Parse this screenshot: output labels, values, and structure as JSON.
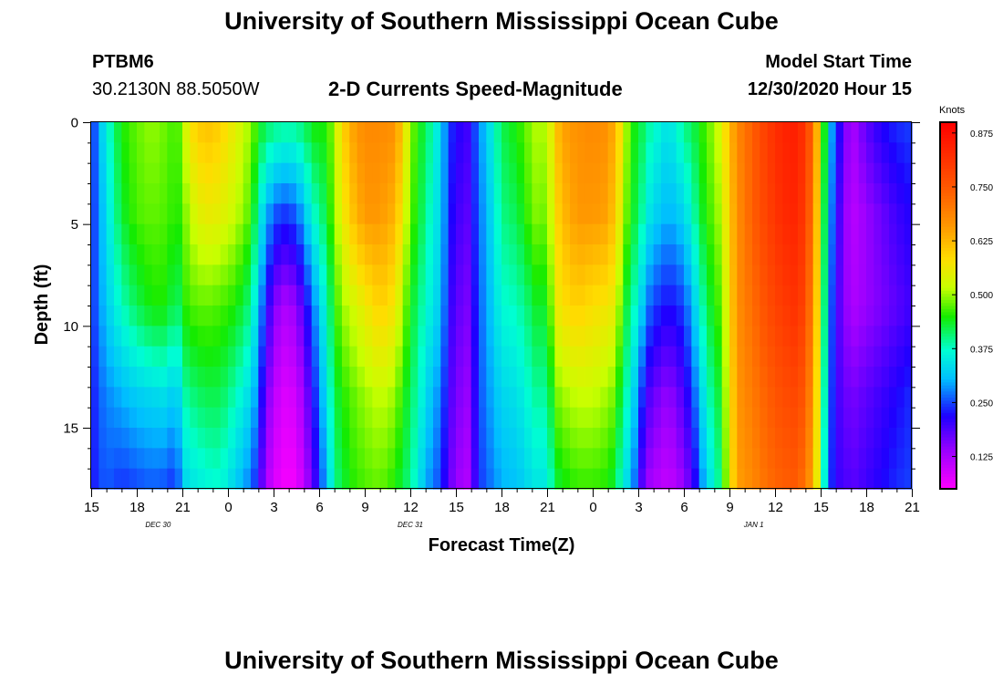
{
  "header": {
    "title": "University of Southern Mississippi Ocean Cube",
    "station": "PTBM6",
    "coords": "30.2130N 88.5050W",
    "chart_title": "2-D Currents Speed-Magnitude",
    "model_label": "Model Start Time",
    "model_time": "12/30/2020 Hour 15"
  },
  "footer": {
    "title": "University of Southern Mississippi Ocean Cube"
  },
  "chart_data": {
    "type": "heatmap",
    "title": "2-D Currents Speed-Magnitude",
    "xlabel": "Forecast Time(Z)",
    "ylabel": "Depth (ft)",
    "x_start": 15,
    "x_end": 69,
    "x_ticks": [
      {
        "value": 15,
        "label": "15"
      },
      {
        "value": 18,
        "label": "18"
      },
      {
        "value": 21,
        "label": "21"
      },
      {
        "value": 24,
        "label": "0"
      },
      {
        "value": 27,
        "label": "3"
      },
      {
        "value": 30,
        "label": "6"
      },
      {
        "value": 33,
        "label": "9"
      },
      {
        "value": 36,
        "label": "12"
      },
      {
        "value": 39,
        "label": "15"
      },
      {
        "value": 42,
        "label": "18"
      },
      {
        "value": 45,
        "label": "21"
      },
      {
        "value": 48,
        "label": "0"
      },
      {
        "value": 51,
        "label": "3"
      },
      {
        "value": 54,
        "label": "6"
      },
      {
        "value": 57,
        "label": "9"
      },
      {
        "value": 60,
        "label": "12"
      },
      {
        "value": 63,
        "label": "15"
      },
      {
        "value": 66,
        "label": "18"
      },
      {
        "value": 69,
        "label": "21"
      }
    ],
    "date_labels": [
      {
        "value": 19.4,
        "label": "DEC 30"
      },
      {
        "value": 36.0,
        "label": "DEC 31"
      },
      {
        "value": 58.6,
        "label": "JAN 1"
      }
    ],
    "ylim": [
      0,
      18
    ],
    "y_ticks": [
      0,
      5,
      10,
      15
    ],
    "colorbar": {
      "unit": "Knots",
      "range": [
        0.05,
        0.9
      ],
      "ticks": [
        0.125,
        0.25,
        0.375,
        0.5,
        0.625,
        0.75,
        0.875
      ],
      "tick_labels": [
        "0.125",
        "0.250",
        "0.375",
        "0.500",
        "0.625",
        "0.750",
        "0.875"
      ]
    },
    "profiles_note": "speed (knots) per column: [time_hours, [value at depth 0, 4.5, 9, 13.5, 18 ft]]",
    "profiles": [
      [
        15.0,
        [
          0.22,
          0.23,
          0.23,
          0.22,
          0.22
        ]
      ],
      [
        15.5,
        [
          0.3,
          0.28,
          0.28,
          0.26,
          0.25
        ]
      ],
      [
        16.0,
        [
          0.36,
          0.34,
          0.32,
          0.28,
          0.26
        ]
      ],
      [
        17.0,
        [
          0.45,
          0.43,
          0.38,
          0.3,
          0.24
        ]
      ],
      [
        18.0,
        [
          0.48,
          0.47,
          0.42,
          0.32,
          0.25
        ]
      ],
      [
        19.0,
        [
          0.5,
          0.48,
          0.45,
          0.33,
          0.26
        ]
      ],
      [
        20.0,
        [
          0.48,
          0.47,
          0.45,
          0.34,
          0.25
        ]
      ],
      [
        20.6,
        [
          0.46,
          0.45,
          0.4,
          0.3,
          0.23
        ]
      ],
      [
        21.0,
        [
          0.5,
          0.47,
          0.45,
          0.38,
          0.32
        ]
      ],
      [
        21.5,
        [
          0.58,
          0.52,
          0.47,
          0.4,
          0.34
        ]
      ],
      [
        22.5,
        [
          0.62,
          0.56,
          0.48,
          0.42,
          0.36
        ]
      ],
      [
        23.5,
        [
          0.6,
          0.55,
          0.47,
          0.42,
          0.37
        ]
      ],
      [
        24.5,
        [
          0.55,
          0.52,
          0.45,
          0.38,
          0.32
        ]
      ],
      [
        25.5,
        [
          0.5,
          0.47,
          0.4,
          0.33,
          0.27
        ]
      ],
      [
        26.0,
        [
          0.45,
          0.38,
          0.32,
          0.27,
          0.22
        ]
      ],
      [
        26.5,
        [
          0.42,
          0.3,
          0.22,
          0.16,
          0.12
        ]
      ],
      [
        27.5,
        [
          0.4,
          0.24,
          0.12,
          0.08,
          0.06
        ]
      ],
      [
        28.5,
        [
          0.4,
          0.26,
          0.14,
          0.09,
          0.06
        ]
      ],
      [
        29.5,
        [
          0.44,
          0.36,
          0.26,
          0.2,
          0.16
        ]
      ],
      [
        30.0,
        [
          0.46,
          0.4,
          0.32,
          0.28,
          0.24
        ]
      ],
      [
        30.5,
        [
          0.44,
          0.42,
          0.38,
          0.34,
          0.3
        ]
      ],
      [
        31.0,
        [
          0.52,
          0.5,
          0.45,
          0.42,
          0.4
        ]
      ],
      [
        31.5,
        [
          0.58,
          0.55,
          0.5,
          0.45,
          0.42
        ]
      ],
      [
        32.0,
        [
          0.64,
          0.6,
          0.52,
          0.47,
          0.45
        ]
      ],
      [
        33.0,
        [
          0.68,
          0.66,
          0.56,
          0.5,
          0.47
        ]
      ],
      [
        34.0,
        [
          0.68,
          0.66,
          0.6,
          0.52,
          0.48
        ]
      ],
      [
        35.0,
        [
          0.67,
          0.63,
          0.57,
          0.5,
          0.45
        ]
      ],
      [
        35.5,
        [
          0.6,
          0.56,
          0.5,
          0.45,
          0.42
        ]
      ],
      [
        36.0,
        [
          0.5,
          0.48,
          0.45,
          0.42,
          0.4
        ]
      ],
      [
        36.5,
        [
          0.45,
          0.44,
          0.4,
          0.38,
          0.35
        ]
      ],
      [
        37.0,
        [
          0.42,
          0.4,
          0.38,
          0.34,
          0.3
        ]
      ],
      [
        37.5,
        [
          0.38,
          0.36,
          0.34,
          0.3,
          0.27
        ]
      ],
      [
        38.0,
        [
          0.33,
          0.33,
          0.32,
          0.28,
          0.25
        ]
      ],
      [
        38.5,
        [
          0.25,
          0.24,
          0.22,
          0.2,
          0.18
        ]
      ],
      [
        39.0,
        [
          0.22,
          0.2,
          0.18,
          0.16,
          0.14
        ]
      ],
      [
        39.8,
        [
          0.2,
          0.18,
          0.16,
          0.14,
          0.12
        ]
      ],
      [
        40.5,
        [
          0.28,
          0.27,
          0.26,
          0.25,
          0.24
        ]
      ],
      [
        41.0,
        [
          0.32,
          0.3,
          0.29,
          0.28,
          0.26
        ]
      ],
      [
        42.0,
        [
          0.42,
          0.4,
          0.37,
          0.33,
          0.3
        ]
      ],
      [
        43.0,
        [
          0.45,
          0.42,
          0.38,
          0.34,
          0.31
        ]
      ],
      [
        44.0,
        [
          0.5,
          0.48,
          0.42,
          0.38,
          0.34
        ]
      ],
      [
        44.5,
        [
          0.52,
          0.5,
          0.45,
          0.4,
          0.35
        ]
      ],
      [
        45.0,
        [
          0.5,
          0.47,
          0.42,
          0.38,
          0.34
        ]
      ],
      [
        45.5,
        [
          0.6,
          0.58,
          0.55,
          0.48,
          0.42
        ]
      ],
      [
        46.0,
        [
          0.65,
          0.62,
          0.58,
          0.5,
          0.44
        ]
      ],
      [
        47.0,
        [
          0.67,
          0.66,
          0.6,
          0.52,
          0.46
        ]
      ],
      [
        48.0,
        [
          0.68,
          0.66,
          0.58,
          0.52,
          0.46
        ]
      ],
      [
        49.0,
        [
          0.67,
          0.65,
          0.57,
          0.5,
          0.45
        ]
      ],
      [
        49.5,
        [
          0.63,
          0.6,
          0.55,
          0.48,
          0.42
        ]
      ],
      [
        50.0,
        [
          0.55,
          0.52,
          0.45,
          0.4,
          0.35
        ]
      ],
      [
        50.5,
        [
          0.45,
          0.44,
          0.4,
          0.36,
          0.32
        ]
      ],
      [
        51.0,
        [
          0.44,
          0.42,
          0.36,
          0.28,
          0.22
        ]
      ],
      [
        51.5,
        [
          0.4,
          0.36,
          0.28,
          0.2,
          0.14
        ]
      ],
      [
        52.0,
        [
          0.38,
          0.33,
          0.25,
          0.17,
          0.12
        ]
      ],
      [
        53.0,
        [
          0.34,
          0.3,
          0.22,
          0.14,
          0.1
        ]
      ],
      [
        54.0,
        [
          0.4,
          0.33,
          0.25,
          0.19,
          0.14
        ]
      ],
      [
        54.5,
        [
          0.42,
          0.37,
          0.3,
          0.24,
          0.18
        ]
      ],
      [
        55.0,
        [
          0.44,
          0.42,
          0.36,
          0.3,
          0.25
        ]
      ],
      [
        55.5,
        [
          0.48,
          0.46,
          0.42,
          0.38,
          0.33
        ]
      ],
      [
        56.0,
        [
          0.5,
          0.48,
          0.45,
          0.4,
          0.36
        ]
      ],
      [
        56.5,
        [
          0.55,
          0.52,
          0.48,
          0.45,
          0.42
        ]
      ],
      [
        57.0,
        [
          0.62,
          0.6,
          0.58,
          0.56,
          0.55
        ]
      ],
      [
        57.5,
        [
          0.68,
          0.67,
          0.67,
          0.66,
          0.65
        ]
      ],
      [
        58.5,
        [
          0.74,
          0.74,
          0.72,
          0.7,
          0.68
        ]
      ],
      [
        59.5,
        [
          0.8,
          0.79,
          0.77,
          0.74,
          0.72
        ]
      ],
      [
        60.5,
        [
          0.84,
          0.83,
          0.8,
          0.77,
          0.74
        ]
      ],
      [
        61.5,
        [
          0.85,
          0.84,
          0.82,
          0.78,
          0.75
        ]
      ],
      [
        62.0,
        [
          0.8,
          0.79,
          0.77,
          0.74,
          0.7
        ]
      ],
      [
        62.5,
        [
          0.72,
          0.7,
          0.68,
          0.66,
          0.64
        ]
      ],
      [
        63.0,
        [
          0.55,
          0.53,
          0.52,
          0.5,
          0.48
        ]
      ],
      [
        63.3,
        [
          0.42,
          0.4,
          0.38,
          0.36,
          0.34
        ]
      ],
      [
        63.7,
        [
          0.3,
          0.28,
          0.26,
          0.25,
          0.24
        ]
      ],
      [
        64.0,
        [
          0.25,
          0.22,
          0.2,
          0.2,
          0.2
        ]
      ],
      [
        64.5,
        [
          0.18,
          0.16,
          0.16,
          0.18,
          0.2
        ]
      ],
      [
        65.0,
        [
          0.12,
          0.11,
          0.12,
          0.16,
          0.18
        ]
      ],
      [
        66.0,
        [
          0.18,
          0.14,
          0.14,
          0.18,
          0.2
        ]
      ],
      [
        67.0,
        [
          0.22,
          0.17,
          0.16,
          0.2,
          0.22
        ]
      ],
      [
        68.0,
        [
          0.24,
          0.2,
          0.18,
          0.22,
          0.24
        ]
      ],
      [
        69.0,
        [
          0.25,
          0.22,
          0.2,
          0.24,
          0.25
        ]
      ]
    ]
  }
}
